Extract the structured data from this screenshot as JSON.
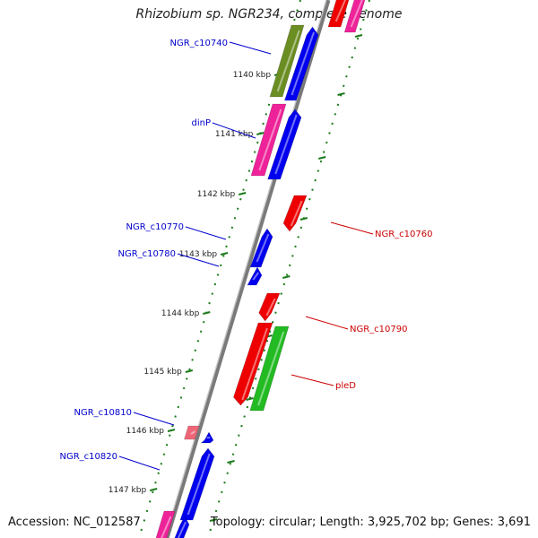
{
  "title": "Rhizobium sp. NGR234, complete genome",
  "footer": {
    "accession": "Accession: NC_012587",
    "summary": "Topology: circular; Length: 3,925,702 bp; Genes: 3,691"
  },
  "colors": {
    "label_left": "#0000cc",
    "label_right": "#cc0000",
    "tick": "#1a7a1a",
    "backbone": "#8a8a8a",
    "gene_blue": "#0000ee",
    "gene_red": "#ee0000",
    "gene_green": "#22bb22",
    "gene_magenta": "#ee2299",
    "gene_olive": "#6b8e23",
    "gene_pink": "#ee6677"
  },
  "ticks": [
    "1140 kbp",
    "1141 kbp",
    "1142 kbp",
    "1143 kbp",
    "1144 kbp",
    "1145 kbp",
    "1146 kbp",
    "1147 kbp"
  ],
  "genes_left": [
    {
      "name": "NGR_c10740",
      "color": "gene_olive"
    },
    {
      "name": "dinP",
      "color": "gene_magenta"
    },
    {
      "name": "NGR_c10770",
      "color": "gene_blue"
    },
    {
      "name": "NGR_c10780",
      "color": "gene_blue"
    },
    {
      "name": "NGR_c10810",
      "color": "gene_pink"
    },
    {
      "name": "NGR_c10820",
      "color": "gene_blue"
    }
  ],
  "genes_right": [
    {
      "name": "NGR_c10760",
      "color": "gene_red"
    },
    {
      "name": "NGR_c10790",
      "color": "gene_red"
    },
    {
      "name": "pleD",
      "color": "gene_green"
    }
  ]
}
